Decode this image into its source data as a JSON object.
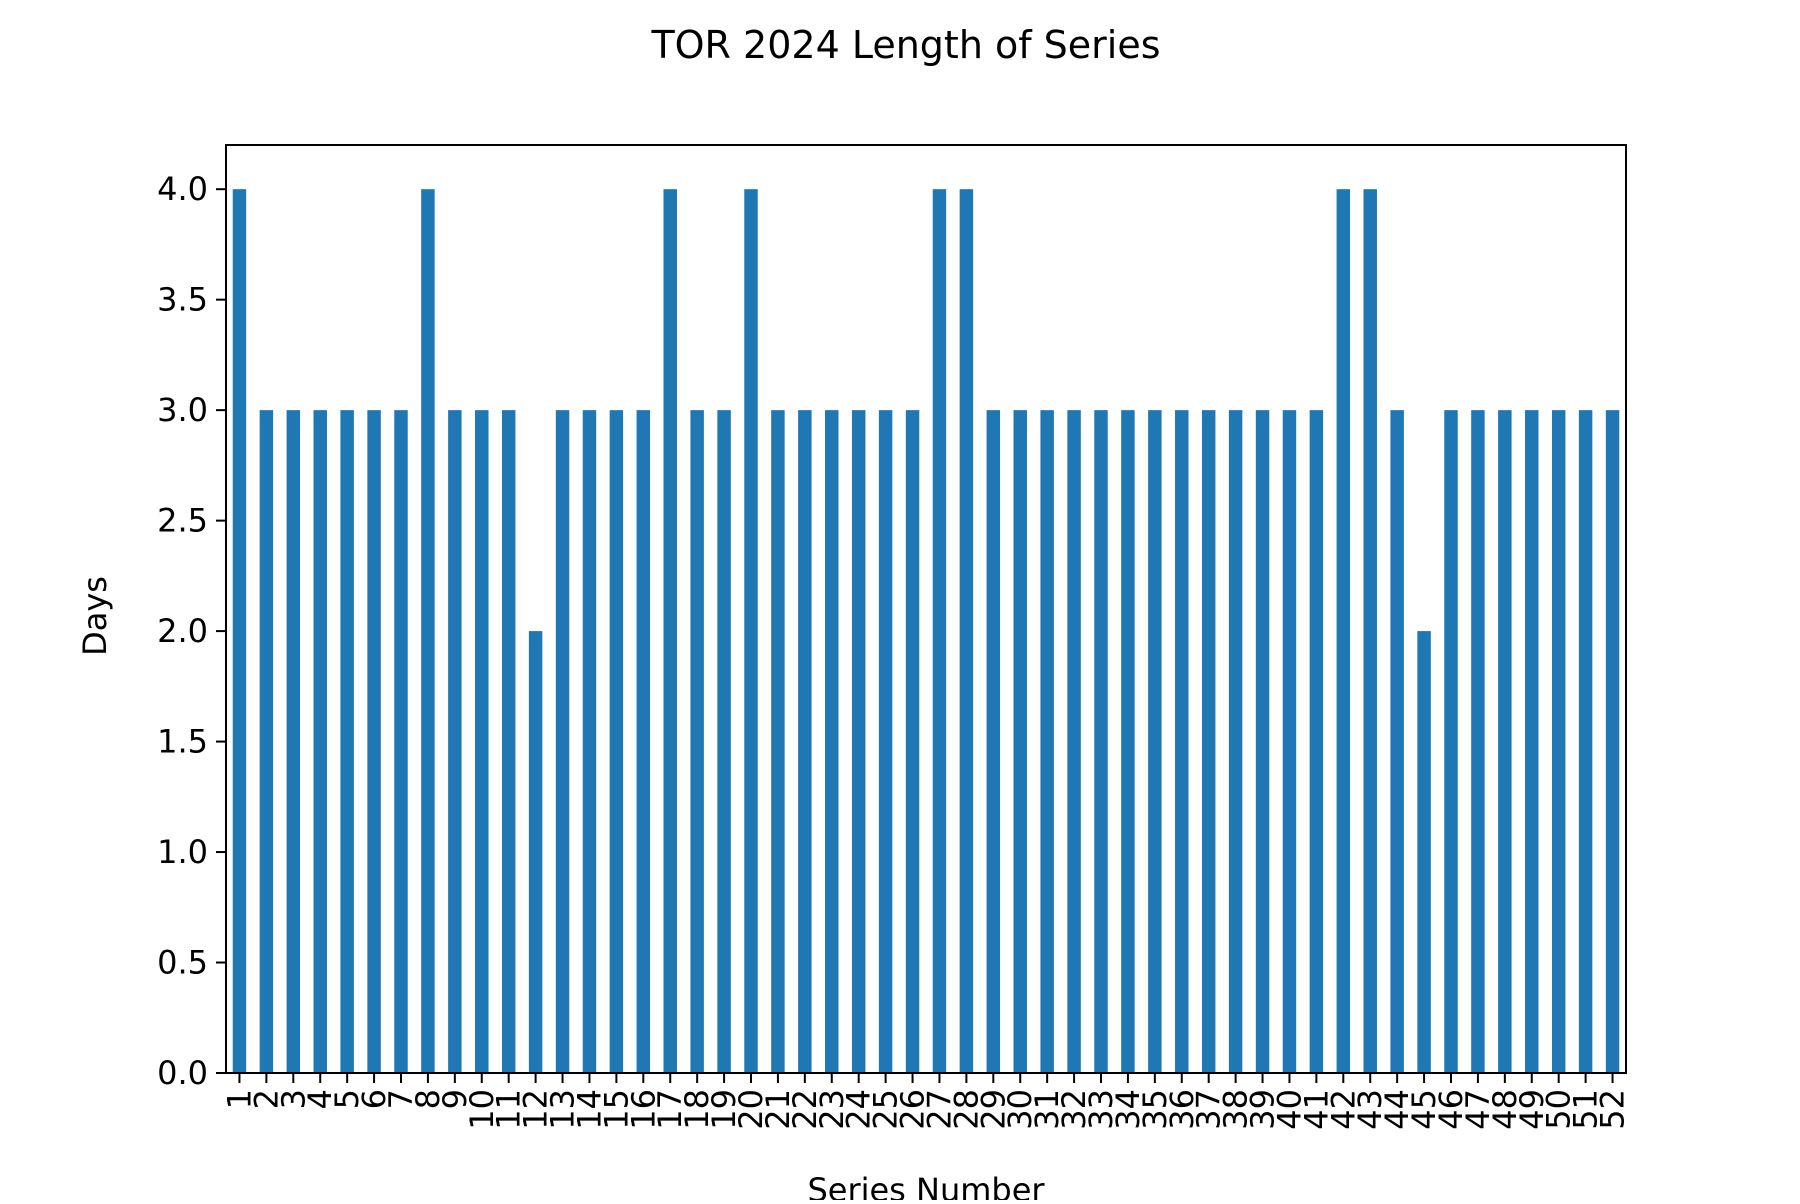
{
  "chart_data": {
    "type": "bar",
    "title": "TOR 2024 Length of Series",
    "xlabel": "Series Number",
    "ylabel": "Days",
    "categories": [
      "1",
      "2",
      "3",
      "4",
      "5",
      "6",
      "7",
      "8",
      "9",
      "10",
      "11",
      "12",
      "13",
      "14",
      "15",
      "16",
      "17",
      "18",
      "19",
      "20",
      "21",
      "22",
      "23",
      "24",
      "25",
      "26",
      "27",
      "28",
      "29",
      "30",
      "31",
      "32",
      "33",
      "34",
      "35",
      "36",
      "37",
      "38",
      "39",
      "40",
      "41",
      "42",
      "43",
      "44",
      "45",
      "46",
      "47",
      "48",
      "49",
      "50",
      "51",
      "52"
    ],
    "values": [
      4,
      3,
      3,
      3,
      3,
      3,
      3,
      4,
      3,
      3,
      3,
      2,
      3,
      3,
      3,
      3,
      4,
      3,
      3,
      4,
      3,
      3,
      3,
      3,
      3,
      3,
      4,
      4,
      3,
      3,
      3,
      3,
      3,
      3,
      3,
      3,
      3,
      3,
      3,
      3,
      3,
      4,
      4,
      3,
      2,
      3,
      3,
      3,
      3,
      3,
      3,
      3
    ],
    "ylim": [
      0,
      4.2
    ],
    "yticks": [
      "0.0",
      "0.5",
      "1.0",
      "1.5",
      "2.0",
      "2.5",
      "3.0",
      "3.5",
      "4.0"
    ],
    "grid": false,
    "legend": false,
    "bar_color": "#1f77b4"
  }
}
